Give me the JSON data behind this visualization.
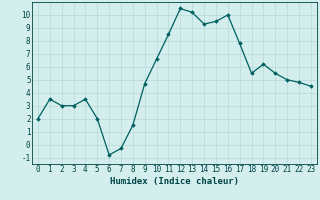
{
  "x": [
    0,
    1,
    2,
    3,
    4,
    5,
    6,
    7,
    8,
    9,
    10,
    11,
    12,
    13,
    14,
    15,
    16,
    17,
    18,
    19,
    20,
    21,
    22,
    23
  ],
  "y": [
    2,
    3.5,
    3,
    3,
    3.5,
    2,
    -0.8,
    -0.3,
    1.5,
    4.7,
    6.6,
    8.5,
    10.5,
    10.2,
    9.3,
    9.5,
    10.0,
    7.8,
    5.5,
    6.2,
    5.5,
    5.0,
    4.8,
    4.5
  ],
  "line_color": "#006060",
  "marker": "D",
  "marker_size": 1.8,
  "bg_color": "#d4eeee",
  "grid_color": "#b8d8d8",
  "tick_color": "#004444",
  "xlabel": "Humidex (Indice chaleur)",
  "ylim": [
    -1.5,
    11
  ],
  "xlim": [
    -0.5,
    23.5
  ],
  "yticks": [
    -1,
    0,
    1,
    2,
    3,
    4,
    5,
    6,
    7,
    8,
    9,
    10
  ],
  "xticks": [
    0,
    1,
    2,
    3,
    4,
    5,
    6,
    7,
    8,
    9,
    10,
    11,
    12,
    13,
    14,
    15,
    16,
    17,
    18,
    19,
    20,
    21,
    22,
    23
  ],
  "xtick_labels": [
    "0",
    "1",
    "2",
    "3",
    "4",
    "5",
    "6",
    "7",
    "8",
    "9",
    "10",
    "11",
    "12",
    "13",
    "14",
    "15",
    "16",
    "17",
    "18",
    "19",
    "20",
    "21",
    "22",
    "23"
  ],
  "xlabel_fontsize": 6.5,
  "tick_fontsize": 5.5,
  "line_width": 0.9
}
